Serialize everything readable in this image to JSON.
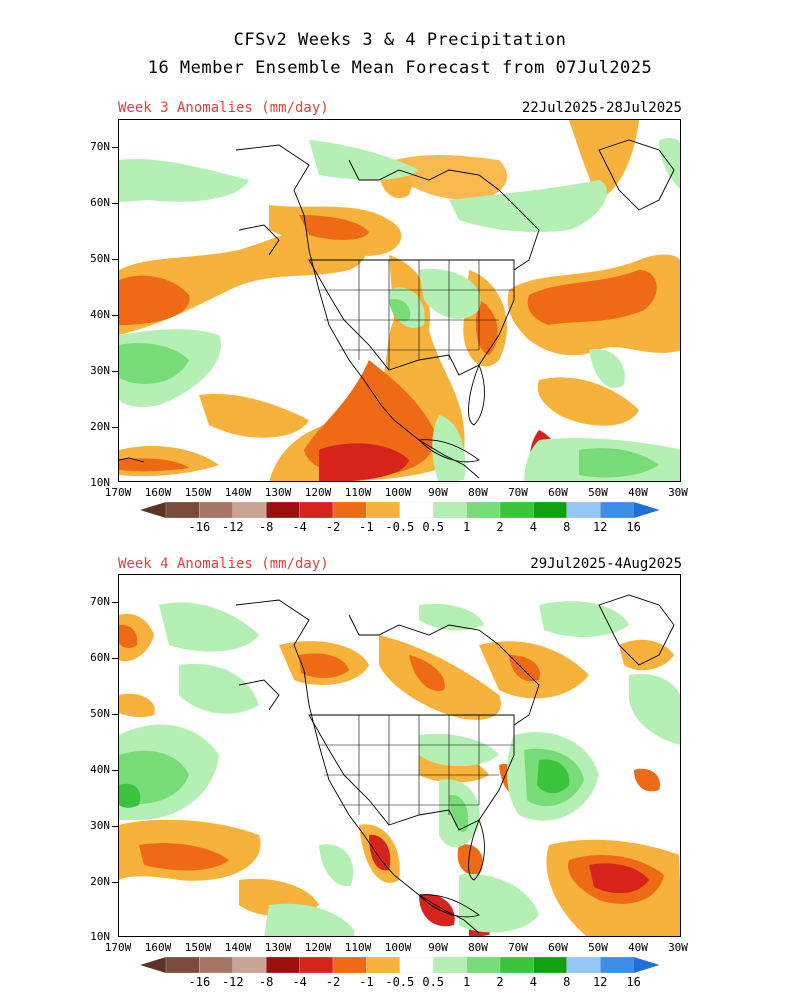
{
  "title": {
    "line1": "CFSv2 Weeks 3 & 4 Precipitation",
    "line2": "16 Member Ensemble Mean Forecast from 07Jul2025"
  },
  "panels": [
    {
      "heading": "Week 3 Anomalies (mm/day)",
      "dates": "22Jul2025-28Jul2025"
    },
    {
      "heading": "Week 4 Anomalies (mm/day)",
      "dates": "29Jul2025-4Aug2025"
    }
  ],
  "lat_labels": [
    "70N",
    "60N",
    "50N",
    "40N",
    "30N",
    "20N",
    "10N"
  ],
  "lon_labels": [
    "170W",
    "160W",
    "150W",
    "140W",
    "130W",
    "120W",
    "110W",
    "100W",
    "90W",
    "80W",
    "70W",
    "60W",
    "50W",
    "40W",
    "30W"
  ],
  "colorbar": {
    "labels": [
      "-16",
      "-12",
      "-8",
      "-4",
      "-2",
      "-1",
      "-0.5",
      "0.5",
      "1",
      "2",
      "4",
      "8",
      "12",
      "16"
    ],
    "colors": [
      "#7a4a3a",
      "#a67563",
      "#c9a394",
      "#9c0d0d",
      "#d6231c",
      "#ef6a14",
      "#f7b23b",
      "#ffffff",
      "#b4f0b4",
      "#78dc78",
      "#3cc43c",
      "#10a010",
      "#96c8f5",
      "#3c8ee8"
    ],
    "end_low": "#5c3326",
    "end_high": "#1e6fd9"
  },
  "legend_colors": {
    "dry_light": "#f7b23b",
    "dry_mid": "#ef6a14",
    "dry_strong": "#d6231c",
    "wet_light": "#b4f0b4",
    "wet_mid": "#78dc78",
    "wet_strong": "#3cc43c"
  }
}
